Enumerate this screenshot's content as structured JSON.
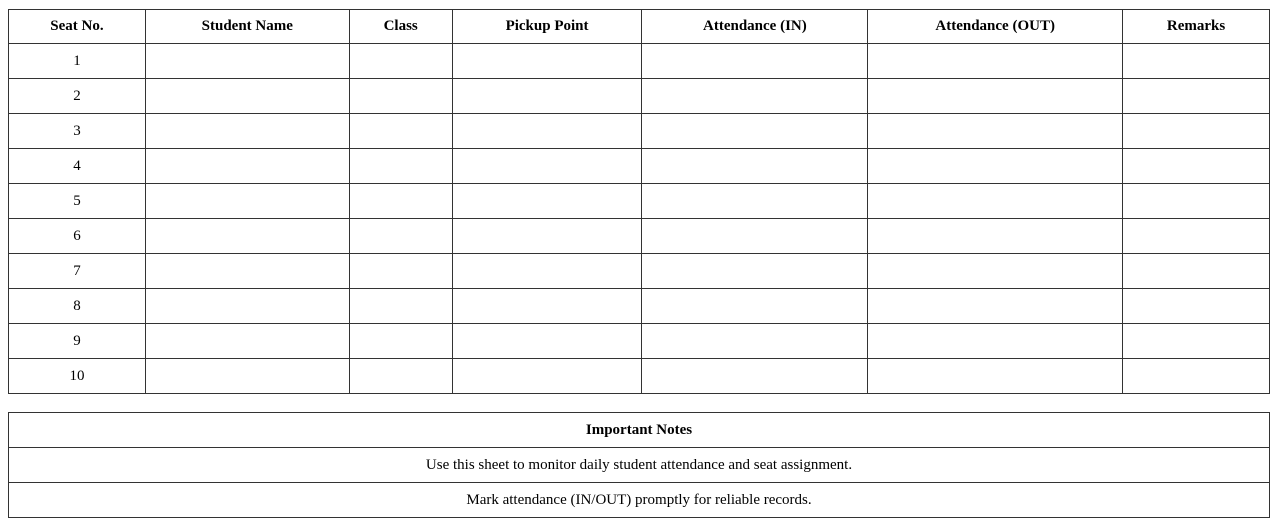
{
  "attendance_table": {
    "headers": [
      "Seat No.",
      "Student Name",
      "Class",
      "Pickup Point",
      "Attendance (IN)",
      "Attendance (OUT)",
      "Remarks"
    ],
    "rows": [
      [
        "1",
        "",
        "",
        "",
        "",
        "",
        ""
      ],
      [
        "2",
        "",
        "",
        "",
        "",
        "",
        ""
      ],
      [
        "3",
        "",
        "",
        "",
        "",
        "",
        ""
      ],
      [
        "4",
        "",
        "",
        "",
        "",
        "",
        ""
      ],
      [
        "5",
        "",
        "",
        "",
        "",
        "",
        ""
      ],
      [
        "6",
        "",
        "",
        "",
        "",
        "",
        ""
      ],
      [
        "7",
        "",
        "",
        "",
        "",
        "",
        ""
      ],
      [
        "8",
        "",
        "",
        "",
        "",
        "",
        ""
      ],
      [
        "9",
        "",
        "",
        "",
        "",
        "",
        ""
      ],
      [
        "10",
        "",
        "",
        "",
        "",
        "",
        ""
      ]
    ]
  },
  "notes": {
    "title": "Important Notes",
    "items": [
      "Use this sheet to monitor daily student attendance and seat assignment.",
      "Mark attendance (IN/OUT) promptly for reliable records."
    ]
  }
}
